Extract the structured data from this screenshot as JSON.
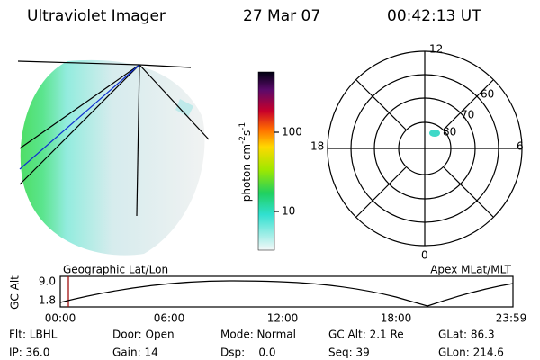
{
  "header": {
    "title": "Ultraviolet Imager",
    "date": "27 Mar 07",
    "time": "00:42:13 UT"
  },
  "colorbar": {
    "label": {
      "text": "photon cm",
      "exp1": "-2",
      "unit2": "s",
      "exp2": "-1"
    },
    "ticks": [
      "100",
      "10"
    ]
  },
  "polar": {
    "mlt_labels": [
      "12",
      "18",
      "6",
      "0"
    ],
    "lat_labels": [
      "60",
      "70",
      "80"
    ]
  },
  "altitude": {
    "y_label": "GC Alt",
    "y_ticks": [
      "9.0",
      "1.8"
    ],
    "left_title": "Geographic Lat/Lon",
    "right_title": "Apex MLat/MLT",
    "x_ticks": [
      "00:00",
      "06:00",
      "12:00",
      "18:00",
      "23:59"
    ]
  },
  "footer": [
    [
      "Flt: LBHL",
      "Door: Open",
      "Mode: Normal",
      "GC Alt: 2.1 Re",
      "GLat: 86.3"
    ],
    [
      "IP: 36.0",
      "Gain: 14",
      "Dsp:    0.0",
      "Seq: 39",
      "GLon: 214.6"
    ]
  ]
}
